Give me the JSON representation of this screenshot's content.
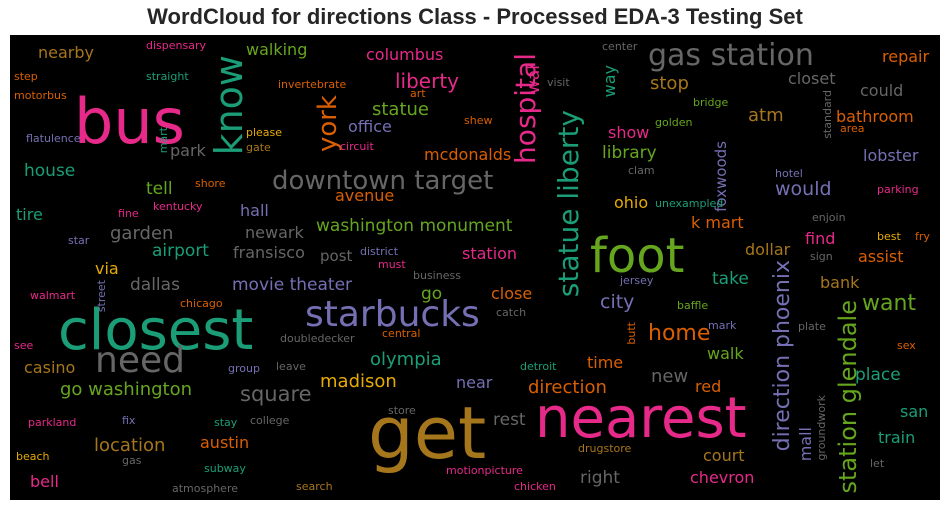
{
  "title": "WordCloud for directions Class - Processed EDA-3 Testing Set",
  "colors": {
    "pink": "#e7298a",
    "teal": "#1b9e77",
    "green": "#66a61e",
    "gold": "#a6761d",
    "orange": "#d95f02",
    "purple": "#7570b3",
    "yellow": "#e6ab02",
    "gray": "#666666",
    "background": "#000000"
  },
  "words": [
    "bus",
    "closest",
    "get",
    "nearest",
    "foot",
    "gas station",
    "starbucks",
    "downtown target",
    "need",
    "know",
    "york",
    "hospital",
    "statue liberty",
    "station glendale",
    "direction phoenix",
    "liberty",
    "statue",
    "office",
    "wal",
    "way",
    "stop",
    "repair",
    "closet",
    "could",
    "atm",
    "bathroom",
    "show",
    "library",
    "lobster",
    "mcdonalds",
    "house",
    "park",
    "tell",
    "would",
    "tire",
    "hall",
    "ohio",
    "k mart",
    "washington monument",
    "garden",
    "newark",
    "avenue",
    "airport",
    "fransisco",
    "post",
    "station",
    "find",
    "assist",
    "via",
    "dallas",
    "movie theater",
    "go",
    "close",
    "bank",
    "want",
    "city",
    "home",
    "olympia",
    "madison",
    "casino",
    "go washington",
    "square",
    "near",
    "new",
    "time",
    "direction",
    "walk",
    "red",
    "place",
    "location",
    "austin",
    "rest",
    "court",
    "chevron",
    "mall",
    "right",
    "bell",
    "san",
    "train",
    "take",
    "nearby",
    "walking",
    "columbus",
    "dollar",
    "dispensary",
    "step",
    "straight",
    "motorbus",
    "invertebrate",
    "art",
    "flatulence",
    "please",
    "gate",
    "circuit",
    "shew",
    "mart",
    "golden",
    "bridge",
    "center",
    "visit",
    "standard",
    "area",
    "shore",
    "clam",
    "foxwoods",
    "hotel",
    "parking",
    "kentucky",
    "fine",
    "unexampled",
    "enjoin",
    "star",
    "district",
    "must",
    "best",
    "fry",
    "sign",
    "walmart",
    "chicago",
    "business",
    "jersey",
    "street",
    "catch",
    "baffle",
    "butt",
    "mark",
    "plate",
    "see",
    "central",
    "doubledecker",
    "group",
    "leave",
    "detroit",
    "sex",
    "parkland",
    "fix",
    "stay",
    "college",
    "store",
    "drugstore",
    "groundwork",
    "let",
    "beach",
    "gas",
    "subway",
    "motionpicture",
    "chicken",
    "atmosphere",
    "search"
  ]
}
